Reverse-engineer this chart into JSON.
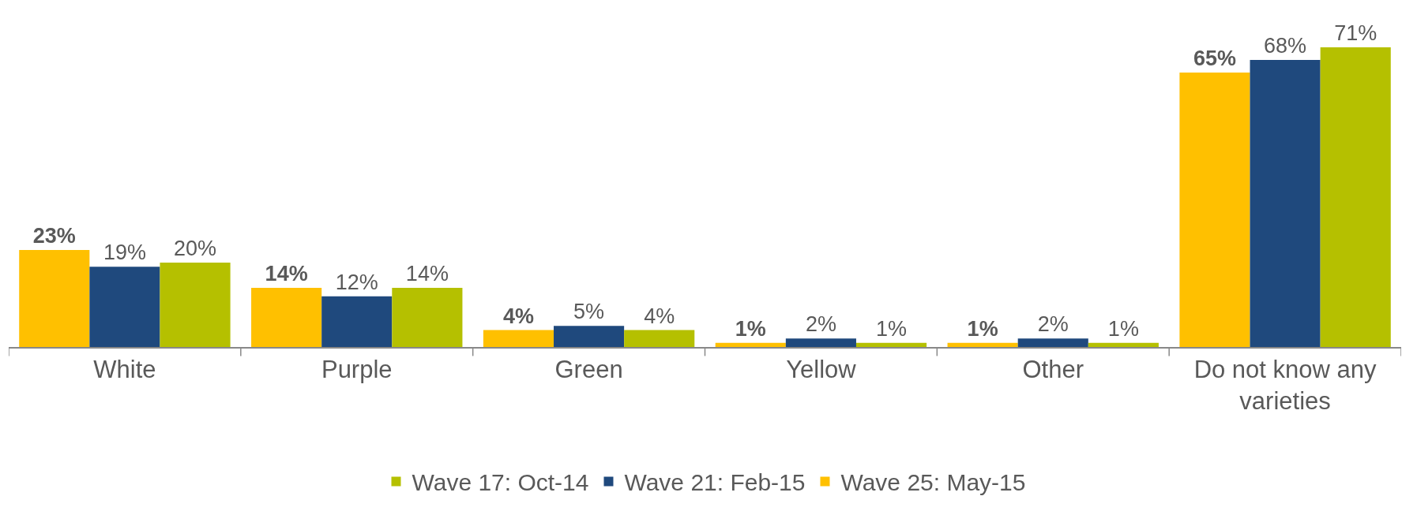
{
  "chart_data": {
    "type": "bar",
    "categories": [
      "White",
      "Purple",
      "Green",
      "Yellow",
      "Other",
      "Do not know any varieties"
    ],
    "series": [
      {
        "name": "Wave 25: May-15",
        "color": "#ffc000",
        "values": [
          23,
          14,
          4,
          1,
          1,
          65
        ],
        "value_labels": [
          "23%",
          "14%",
          "4%",
          "1%",
          "1%",
          "65%"
        ]
      },
      {
        "name": "Wave 21: Feb-15",
        "color": "#1f497d",
        "values": [
          19,
          12,
          5,
          2,
          2,
          68
        ],
        "value_labels": [
          "19%",
          "12%",
          "5%",
          "2%",
          "2%",
          "68%"
        ]
      },
      {
        "name": "Wave 17: Oct-14",
        "color": "#b5c000",
        "values": [
          20,
          14,
          4,
          1,
          1,
          71
        ],
        "value_labels": [
          "20%",
          "14%",
          "4%",
          "1%",
          "1%",
          "71%"
        ]
      }
    ],
    "ylim": [
      0,
      71
    ],
    "tick_labels": "x",
    "legend": "bottom"
  }
}
